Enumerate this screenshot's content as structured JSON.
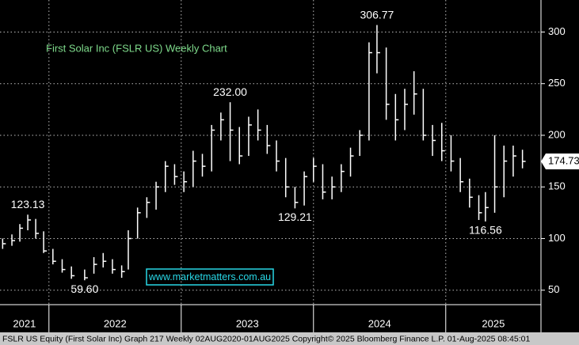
{
  "chart_data": {
    "type": "hlc",
    "title": "First Solar Inc (FSLR US) Weekly Chart",
    "watermark": "www.marketmatters.com.au",
    "footer": "FSLR US Equity (First Solar Inc) Graph 217  Weekly 02AUG2020-01AUG2025  Copyright© 2025 Bloomberg Finance L.P.  01-Aug-2025 08:45:01",
    "color": "#ffffff",
    "grid": true,
    "x": [
      2021.65,
      2021.72,
      2021.78,
      2021.84,
      2021.9,
      2021.96,
      2022.03,
      2022.1,
      2022.17,
      2022.27,
      2022.34,
      2022.41,
      2022.48,
      2022.55,
      2022.6,
      2022.67,
      2022.74,
      2022.81,
      2022.88,
      2022.95,
      2023.02,
      2023.09,
      2023.16,
      2023.23,
      2023.3,
      2023.37,
      2023.44,
      2023.51,
      2023.58,
      2023.65,
      2023.72,
      2023.79,
      2023.86,
      2023.93,
      2024.0,
      2024.07,
      2024.14,
      2024.21,
      2024.28,
      2024.35,
      2024.42,
      2024.48,
      2024.55,
      2024.62,
      2024.69,
      2024.76,
      2024.83,
      2024.9,
      2024.97,
      2025.04,
      2025.11,
      2025.18,
      2025.25,
      2025.3,
      2025.37,
      2025.44,
      2025.51,
      2025.58
    ],
    "high": [
      100,
      104,
      114,
      123.13,
      119,
      107,
      90,
      80,
      73,
      70,
      82,
      86,
      80,
      74,
      108,
      130,
      140,
      155,
      175,
      172,
      165,
      185,
      182,
      210,
      222,
      232,
      208,
      218,
      225,
      210,
      195,
      178,
      150,
      165,
      178,
      172,
      160,
      172,
      188,
      205,
      290,
      306.77,
      285,
      240,
      245,
      262,
      245,
      210,
      212,
      200,
      178,
      158,
      142,
      145,
      200,
      190,
      190,
      186
    ],
    "low": [
      90,
      93,
      97,
      108,
      100,
      86,
      75,
      67,
      61,
      59.6,
      66,
      72,
      66,
      62,
      70,
      100,
      120,
      128,
      145,
      152,
      145,
      150,
      160,
      165,
      195,
      175,
      172,
      180,
      195,
      182,
      165,
      140,
      129.21,
      132,
      155,
      138,
      138,
      145,
      160,
      180,
      195,
      260,
      215,
      195,
      205,
      220,
      195,
      180,
      175,
      165,
      145,
      130,
      118,
      116.56,
      125,
      140,
      160,
      168
    ],
    "close": [
      95,
      98,
      110,
      118,
      105,
      88,
      78,
      70,
      64,
      62,
      75,
      78,
      70,
      68,
      100,
      125,
      135,
      150,
      170,
      160,
      155,
      175,
      170,
      205,
      215,
      205,
      180,
      210,
      205,
      190,
      175,
      150,
      135,
      160,
      170,
      145,
      150,
      165,
      180,
      200,
      280,
      280,
      230,
      215,
      230,
      240,
      200,
      195,
      185,
      175,
      155,
      140,
      125,
      130,
      150,
      175,
      180,
      174.73
    ],
    "annotations": [
      {
        "x": 2021.84,
        "value": 123.13,
        "label": "123.13",
        "position": "above"
      },
      {
        "x": 2022.27,
        "value": 59.6,
        "label": "59.60",
        "position": "below"
      },
      {
        "x": 2023.37,
        "value": 232,
        "label": "232.00",
        "position": "above"
      },
      {
        "x": 2023.86,
        "value": 129.21,
        "label": "129.21",
        "position": "below"
      },
      {
        "x": 2024.48,
        "value": 306.77,
        "label": "306.77",
        "position": "above"
      },
      {
        "x": 2025.3,
        "value": 116.56,
        "label": "116.56",
        "position": "below"
      }
    ],
    "last_price": {
      "value": 174.73,
      "label": "174.73"
    },
    "xlim": [
      2021.63,
      2025.72
    ],
    "xticks": [
      {
        "value": 2021,
        "label": "2021"
      },
      {
        "value": 2022,
        "label": "2022"
      },
      {
        "value": 2023,
        "label": "2023"
      },
      {
        "value": 2024,
        "label": "2024"
      },
      {
        "value": 2025,
        "label": "2025"
      }
    ],
    "ylim": [
      36,
      331
    ],
    "yticks": [
      50,
      100,
      150,
      200,
      250,
      300
    ]
  }
}
